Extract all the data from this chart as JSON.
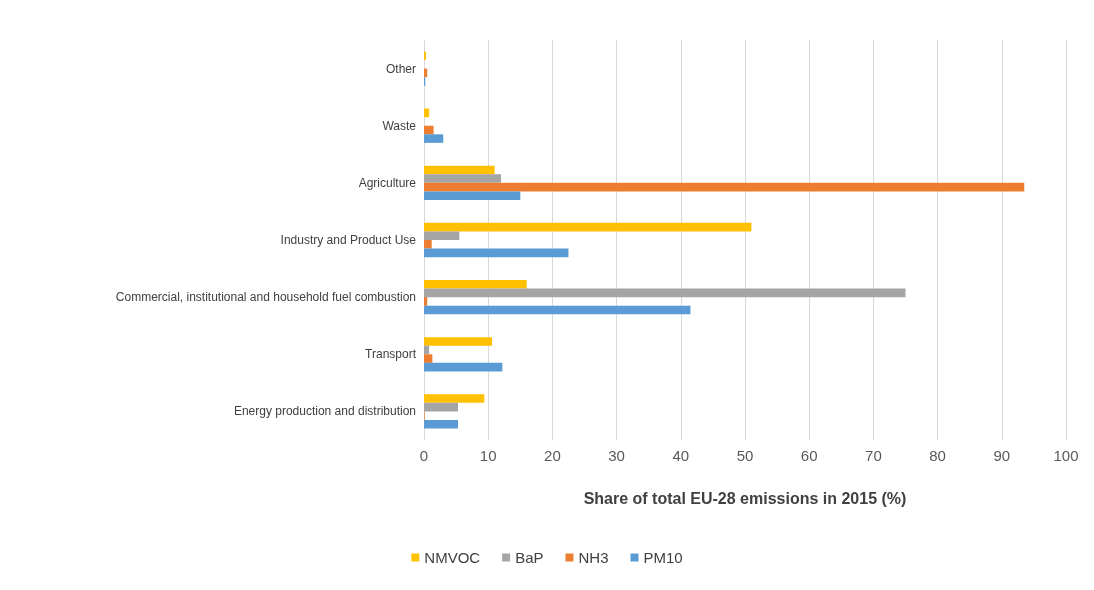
{
  "chart_data": {
    "type": "bar",
    "orientation": "horizontal",
    "xlabel": "Share of total EU-28 emissions in 2015 (%)",
    "categories": [
      "Other",
      "Waste",
      "Agriculture",
      "Industry and Product Use",
      "Commercial, institutional and household fuel combustion",
      "Transport",
      "Energy production and distribution"
    ],
    "series": [
      {
        "name": "NMVOC",
        "color": "#ffc000",
        "values": [
          0.3,
          0.8,
          11,
          51,
          16,
          10.6,
          9.4
        ]
      },
      {
        "name": "BaP",
        "color": "#a5a5a5",
        "values": [
          null,
          null,
          12,
          5.5,
          75,
          0.8,
          5.3
        ]
      },
      {
        "name": "NH3",
        "color": "#ed7d31",
        "values": [
          0.5,
          1.5,
          93.5,
          1.2,
          0.5,
          1.3,
          0.1
        ]
      },
      {
        "name": "PM10",
        "color": "#5b9bd5",
        "values": [
          0.2,
          3,
          15,
          22.5,
          41.5,
          12.2,
          5.3
        ]
      }
    ],
    "xlim": [
      0,
      100
    ],
    "xticks": [
      0,
      10,
      20,
      30,
      40,
      50,
      60,
      70,
      80,
      90,
      100
    ],
    "grid": "x",
    "legend": "bottom"
  }
}
